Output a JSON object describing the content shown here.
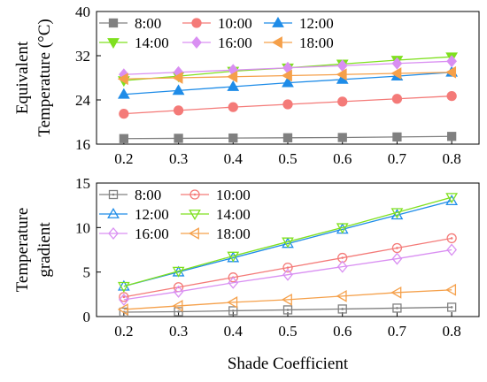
{
  "chart_data": [
    {
      "type": "line",
      "ylabel_lines": [
        "Equivalent",
        "Temperature (°C)"
      ],
      "x_ticks": [
        "0.2",
        "0.3",
        "0.4",
        "0.5",
        "0.6",
        "0.7",
        "0.8"
      ],
      "x": [
        0.2,
        0.3,
        0.4,
        0.5,
        0.6,
        0.7,
        0.8
      ],
      "ylim": [
        16,
        40
      ],
      "yticks": [
        16,
        24,
        32,
        40
      ],
      "marker_fill": "filled",
      "legend_columns": 3,
      "series": [
        {
          "name": "8:00",
          "color": "#808080",
          "marker": "square",
          "values": [
            17.0,
            17.05,
            17.1,
            17.15,
            17.2,
            17.3,
            17.4
          ]
        },
        {
          "name": "10:00",
          "color": "#f47a78",
          "marker": "circle",
          "values": [
            21.5,
            22.1,
            22.7,
            23.2,
            23.7,
            24.2,
            24.7
          ]
        },
        {
          "name": "12:00",
          "color": "#1e8ce8",
          "marker": "triangle-up",
          "values": [
            25.0,
            25.7,
            26.4,
            27.1,
            27.7,
            28.3,
            29.0
          ]
        },
        {
          "name": "14:00",
          "color": "#7fe01f",
          "marker": "triangle-down",
          "values": [
            27.5,
            28.3,
            29.2,
            29.8,
            30.5,
            31.2,
            31.8
          ]
        },
        {
          "name": "16:00",
          "color": "#d98ff2",
          "marker": "diamond",
          "values": [
            28.6,
            29.0,
            29.4,
            29.8,
            30.2,
            30.6,
            31.0
          ]
        },
        {
          "name": "18:00",
          "color": "#f5a04a",
          "marker": "triangle-left",
          "values": [
            27.8,
            28.0,
            28.2,
            28.4,
            28.6,
            28.8,
            29.0
          ]
        }
      ]
    },
    {
      "type": "line",
      "xlabel": "Shade Coefficient",
      "ylabel_lines": [
        "Temperature",
        "gradient"
      ],
      "x_ticks": [
        "0.2",
        "0.3",
        "0.4",
        "0.5",
        "0.6",
        "0.7",
        "0.8"
      ],
      "x": [
        0.2,
        0.3,
        0.4,
        0.5,
        0.6,
        0.7,
        0.8
      ],
      "ylim": [
        0,
        15
      ],
      "yticks": [
        0,
        5,
        10,
        15
      ],
      "marker_fill": "hollow",
      "legend_columns": 2,
      "series": [
        {
          "name": "8:00",
          "color": "#808080",
          "marker": "square",
          "values": [
            0.5,
            0.55,
            0.65,
            0.75,
            0.85,
            0.95,
            1.05
          ]
        },
        {
          "name": "10:00",
          "color": "#f47a78",
          "marker": "circle",
          "values": [
            2.2,
            3.3,
            4.4,
            5.5,
            6.6,
            7.7,
            8.8
          ]
        },
        {
          "name": "12:00",
          "color": "#1e8ce8",
          "marker": "triangle-up",
          "values": [
            3.4,
            5.0,
            6.6,
            8.2,
            9.8,
            11.4,
            13.0
          ]
        },
        {
          "name": "14:00",
          "color": "#7fe01f",
          "marker": "triangle-down",
          "values": [
            3.4,
            5.1,
            6.8,
            8.4,
            10.0,
            11.7,
            13.4
          ]
        },
        {
          "name": "16:00",
          "color": "#d98ff2",
          "marker": "diamond",
          "values": [
            1.9,
            2.8,
            3.8,
            4.7,
            5.6,
            6.5,
            7.5
          ]
        },
        {
          "name": "18:00",
          "color": "#f5a04a",
          "marker": "triangle-left",
          "values": [
            0.8,
            1.2,
            1.6,
            1.9,
            2.3,
            2.7,
            3.0
          ]
        }
      ]
    }
  ]
}
